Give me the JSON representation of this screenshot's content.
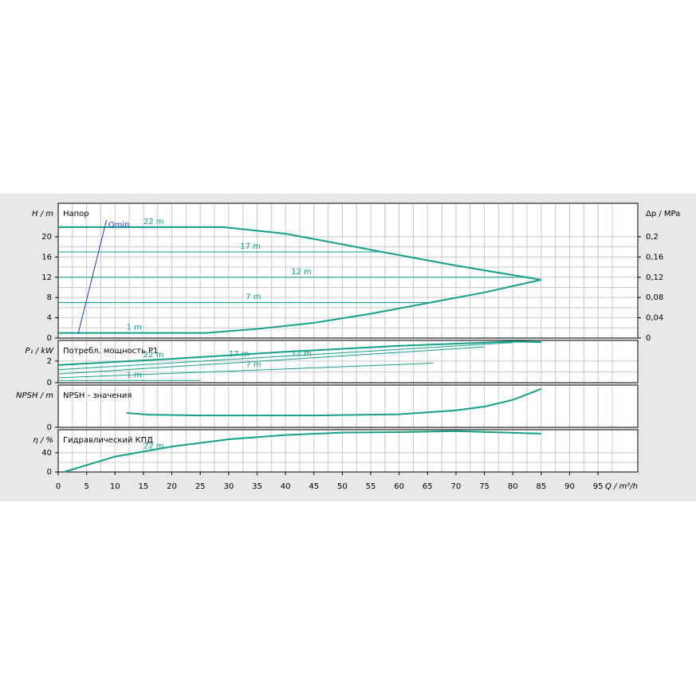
{
  "chart_data": [
    {
      "type": "line",
      "title": "Напор",
      "ylabel": "H / m",
      "y2label": "Δp / MPa",
      "ylim": [
        0,
        26.6
      ],
      "yticks": [
        0,
        4,
        8,
        12,
        16,
        20
      ],
      "y2lim": [
        0,
        0.266
      ],
      "y2ticks": [
        0,
        {
          "value": 0.04,
          "label": "0,04"
        },
        {
          "value": 0.08,
          "label": "0,08"
        },
        {
          "value": 0.12,
          "label": "0,12"
        },
        {
          "value": 0.16,
          "label": "0,16"
        },
        {
          "value": 0.2,
          "label": "0,2"
        }
      ],
      "series": [
        {
          "name": "22 m",
          "color": "#12a08a",
          "x": [
            0,
            29,
            40,
            50,
            57,
            70,
            85
          ],
          "values": [
            21.9,
            21.9,
            20.6,
            18.5,
            17,
            14.3,
            11.5
          ]
        },
        {
          "name": "17 m",
          "color": "#12a08a",
          "x": [
            0,
            57
          ],
          "values": [
            17,
            17
          ]
        },
        {
          "name": "12 m",
          "color": "#12a08a",
          "x": [
            0,
            83
          ],
          "values": [
            12,
            12
          ]
        },
        {
          "name": "7 m",
          "color": "#12a08a",
          "x": [
            0,
            66
          ],
          "values": [
            7,
            7
          ]
        },
        {
          "name": "1 m",
          "color": "#12a08a",
          "x": [
            0,
            26,
            35,
            45,
            55,
            65,
            75,
            85
          ],
          "values": [
            1,
            1,
            1.8,
            3,
            4.8,
            6.9,
            9,
            11.5
          ]
        },
        {
          "name": "Qmin",
          "color": "#1f3fcf",
          "x": [
            3.5,
            8.5
          ],
          "values": [
            0.8,
            23.3
          ]
        }
      ]
    },
    {
      "type": "line",
      "title": "Потребл. мощность P1",
      "ylabel": "P₁ / kW",
      "ylim": [
        0,
        3.9
      ],
      "yticks": [
        0,
        2
      ],
      "series": [
        {
          "name": "22 m",
          "color": "#12a08a",
          "x": [
            0,
            20,
            40,
            60,
            80,
            85
          ],
          "values": [
            1.63,
            2.2,
            2.85,
            3.4,
            3.8,
            3.75
          ]
        },
        {
          "name": "17 m",
          "color": "#12a08a",
          "x": [
            0,
            80
          ],
          "values": [
            1.2,
            3.7
          ]
        },
        {
          "name": "12 m",
          "color": "#12a08a",
          "x": [
            0,
            75
          ],
          "values": [
            0.8,
            3.3
          ]
        },
        {
          "name": "7 m",
          "color": "#12a08a",
          "x": [
            0,
            66
          ],
          "values": [
            0.45,
            1.8
          ]
        },
        {
          "name": "1 m",
          "color": "#12a08a",
          "x": [
            0,
            25
          ],
          "values": [
            0.2,
            0.2
          ]
        }
      ]
    },
    {
      "type": "line",
      "title": "NPSH - значения",
      "ylabel": "NPSH / m",
      "ylim": [
        0,
        10
      ],
      "yticks": [
        0
      ],
      "series": [
        {
          "color": "#12a08a",
          "x": [
            12,
            16,
            25,
            45,
            60,
            70,
            75,
            80,
            85
          ],
          "values": [
            3.4,
            3,
            2.8,
            2.8,
            3.1,
            4,
            4.9,
            6.5,
            9.1
          ]
        }
      ]
    },
    {
      "type": "line",
      "title": "Гидравлический КПД",
      "ylabel": "η / %",
      "ylim": [
        0,
        88
      ],
      "yticks": [
        0,
        40
      ],
      "xlabel": "Q / m³/h",
      "xlim": [
        0,
        102
      ],
      "xticks": [
        0,
        5,
        10,
        15,
        20,
        25,
        30,
        35,
        40,
        45,
        50,
        55,
        60,
        65,
        70,
        75,
        80,
        85,
        90,
        95
      ],
      "series": [
        {
          "name": "22 m",
          "color": "#12a08a",
          "x": [
            1,
            10,
            20,
            30,
            40,
            50,
            60,
            70,
            85
          ],
          "values": [
            0,
            32,
            53,
            68,
            77,
            82,
            83,
            85,
            80
          ]
        }
      ]
    }
  ]
}
